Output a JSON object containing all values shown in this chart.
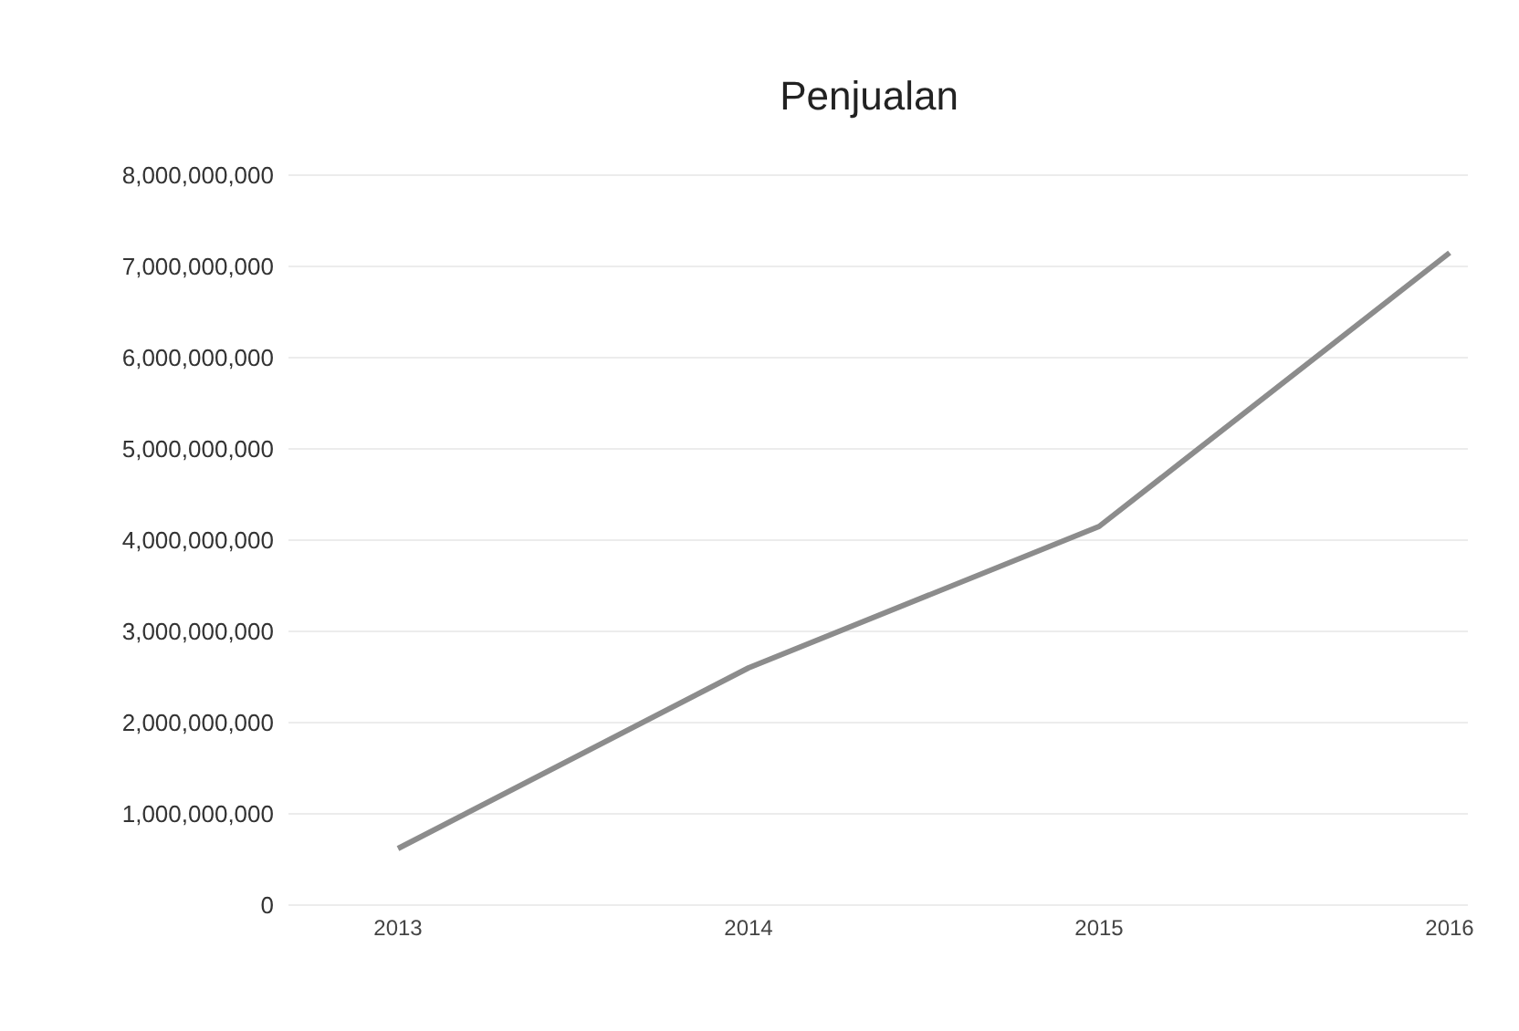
{
  "chart_data": {
    "type": "line",
    "title": "Penjualan",
    "categories": [
      "2013",
      "2014",
      "2015",
      "2016"
    ],
    "series": [
      {
        "color": "#8c8c8c",
        "values": [
          620000000,
          2600000000,
          4150000000,
          7150000000
        ]
      }
    ],
    "ylim": [
      0,
      8000000000
    ],
    "yticks": [
      0,
      {
        "value": 1000000000,
        "label": "1,000,000,000"
      },
      {
        "value": 2000000000,
        "label": "2,000,000,000"
      },
      {
        "value": 3000000000,
        "label": "3,000,000,000"
      },
      {
        "value": 4000000000,
        "label": "4,000,000,000"
      },
      {
        "value": 5000000000,
        "label": "5,000,000,000"
      },
      {
        "value": 6000000000,
        "label": "6,000,000,000"
      },
      {
        "value": 7000000000,
        "label": "7,000,000,000"
      },
      {
        "value": 8000000000,
        "label": "8,000,000,000"
      }
    ],
    "grid": "y",
    "legend": false,
    "marker": "none"
  }
}
